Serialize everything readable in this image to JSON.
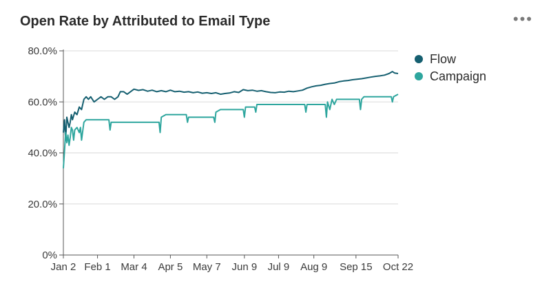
{
  "header": {
    "title": "Open Rate by Attributed to Email Type",
    "menu_label": "•••"
  },
  "chart_data": {
    "type": "line",
    "title": "Open Rate by Attributed to Email Type",
    "xlabel": "",
    "ylabel": "",
    "ylim": [
      0,
      80
    ],
    "yticks": [
      "0%",
      "20.0%",
      "40.0%",
      "60.0%",
      "80.0%"
    ],
    "ytick_values": [
      0,
      20,
      40,
      60,
      80
    ],
    "xticks": [
      "Jan 2",
      "Feb 1",
      "Mar 4",
      "Apr 5",
      "May 7",
      "Jun 9",
      "Jul 9",
      "Aug 9",
      "Sep 15",
      "Oct 22"
    ],
    "xtick_days": [
      0,
      30,
      62,
      94,
      126,
      159,
      189,
      220,
      257,
      294
    ],
    "grid": true,
    "legend": "top-right",
    "series": [
      {
        "name": "Flow",
        "color": "#155f70",
        "points": [
          [
            0,
            48
          ],
          [
            1,
            53
          ],
          [
            2,
            45
          ],
          [
            3,
            54
          ],
          [
            4,
            52
          ],
          [
            5,
            50
          ],
          [
            6,
            52
          ],
          [
            7,
            55
          ],
          [
            8,
            53
          ],
          [
            10,
            56
          ],
          [
            12,
            55
          ],
          [
            14,
            58
          ],
          [
            16,
            57
          ],
          [
            18,
            61
          ],
          [
            20,
            62
          ],
          [
            22,
            61
          ],
          [
            24,
            62
          ],
          [
            27,
            60
          ],
          [
            30,
            61
          ],
          [
            33,
            62
          ],
          [
            36,
            61
          ],
          [
            39,
            62
          ],
          [
            42,
            62
          ],
          [
            45,
            61
          ],
          [
            48,
            62
          ],
          [
            50,
            64
          ],
          [
            53,
            64
          ],
          [
            56,
            63
          ],
          [
            59,
            64
          ],
          [
            62,
            65
          ],
          [
            66,
            64.5
          ],
          [
            70,
            64.8
          ],
          [
            74,
            64.2
          ],
          [
            78,
            64.6
          ],
          [
            82,
            64
          ],
          [
            86,
            64.4
          ],
          [
            90,
            64
          ],
          [
            94,
            64.6
          ],
          [
            98,
            64
          ],
          [
            102,
            64.2
          ],
          [
            106,
            63.8
          ],
          [
            110,
            64
          ],
          [
            114,
            63.6
          ],
          [
            118,
            63.9
          ],
          [
            122,
            63.4
          ],
          [
            126,
            63.6
          ],
          [
            130,
            63.3
          ],
          [
            134,
            63.6
          ],
          [
            138,
            63
          ],
          [
            142,
            63.3
          ],
          [
            146,
            63.5
          ],
          [
            150,
            64
          ],
          [
            154,
            63.7
          ],
          [
            158,
            64.8
          ],
          [
            162,
            64.4
          ],
          [
            166,
            64.6
          ],
          [
            170,
            64.2
          ],
          [
            174,
            64.4
          ],
          [
            178,
            64
          ],
          [
            182,
            63.7
          ],
          [
            186,
            63.6
          ],
          [
            190,
            63.9
          ],
          [
            194,
            63.8
          ],
          [
            198,
            64.2
          ],
          [
            202,
            64
          ],
          [
            206,
            64.3
          ],
          [
            210,
            64.6
          ],
          [
            214,
            65.4
          ],
          [
            218,
            65.9
          ],
          [
            222,
            66.3
          ],
          [
            226,
            66.5
          ],
          [
            230,
            66.9
          ],
          [
            234,
            67.2
          ],
          [
            238,
            67.4
          ],
          [
            242,
            67.9
          ],
          [
            246,
            68.2
          ],
          [
            250,
            68.4
          ],
          [
            254,
            68.7
          ],
          [
            258,
            68.9
          ],
          [
            262,
            69.1
          ],
          [
            266,
            69.4
          ],
          [
            270,
            69.7
          ],
          [
            274,
            70
          ],
          [
            278,
            70.2
          ],
          [
            282,
            70.5
          ],
          [
            286,
            71.1
          ],
          [
            289,
            71.9
          ],
          [
            291,
            71.3
          ],
          [
            294,
            71.1
          ]
        ]
      },
      {
        "name": "Campaign",
        "color": "#2ea69e",
        "points": [
          [
            0,
            34
          ],
          [
            1,
            41
          ],
          [
            2,
            48
          ],
          [
            3,
            44
          ],
          [
            4,
            47
          ],
          [
            5,
            43
          ],
          [
            6,
            46
          ],
          [
            7,
            50
          ],
          [
            8,
            49
          ],
          [
            9,
            45
          ],
          [
            10,
            49
          ],
          [
            12,
            50
          ],
          [
            14,
            48
          ],
          [
            15,
            50
          ],
          [
            16,
            45
          ],
          [
            18,
            52
          ],
          [
            20,
            53
          ],
          [
            24,
            53
          ],
          [
            30,
            53
          ],
          [
            35,
            53
          ],
          [
            40,
            53
          ],
          [
            41,
            49
          ],
          [
            42,
            52
          ],
          [
            50,
            52
          ],
          [
            60,
            52
          ],
          [
            70,
            52
          ],
          [
            80,
            52
          ],
          [
            84,
            52
          ],
          [
            85,
            48
          ],
          [
            86,
            54
          ],
          [
            90,
            55
          ],
          [
            100,
            55
          ],
          [
            108,
            55
          ],
          [
            109,
            52
          ],
          [
            110,
            54
          ],
          [
            120,
            54
          ],
          [
            132,
            54
          ],
          [
            133,
            52
          ],
          [
            134,
            56
          ],
          [
            138,
            57
          ],
          [
            150,
            57
          ],
          [
            158,
            57
          ],
          [
            159,
            54
          ],
          [
            160,
            58
          ],
          [
            168,
            58
          ],
          [
            169,
            56
          ],
          [
            170,
            59
          ],
          [
            180,
            59
          ],
          [
            190,
            59
          ],
          [
            200,
            59
          ],
          [
            212,
            59
          ],
          [
            213,
            56
          ],
          [
            214,
            59
          ],
          [
            225,
            59
          ],
          [
            230,
            59
          ],
          [
            231,
            54
          ],
          [
            232,
            60
          ],
          [
            234,
            57
          ],
          [
            236,
            61
          ],
          [
            238,
            59
          ],
          [
            240,
            61
          ],
          [
            250,
            61
          ],
          [
            260,
            61
          ],
          [
            261,
            57
          ],
          [
            262,
            61
          ],
          [
            264,
            62
          ],
          [
            270,
            62
          ],
          [
            280,
            62
          ],
          [
            288,
            62
          ],
          [
            289,
            60
          ],
          [
            290,
            62
          ],
          [
            294,
            63
          ]
        ]
      }
    ]
  }
}
